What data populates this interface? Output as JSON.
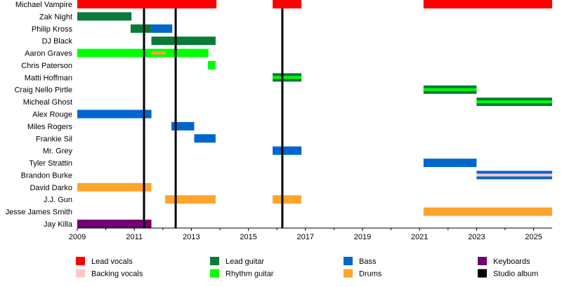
{
  "chart_data": {
    "type": "timeline",
    "xlim": [
      2009,
      2025.65
    ],
    "x_ticks": [
      "2009",
      "2011",
      "2013",
      "2015",
      "2017",
      "2019",
      "2021",
      "2023",
      "2025"
    ],
    "roles": {
      "lead_vocals": {
        "label": "Lead vocals",
        "color": "#ff0000"
      },
      "backing_vocals": {
        "label": "Backing vocals",
        "color": "#ffc8c8"
      },
      "lead_guitar": {
        "label": "Lead guitar",
        "color": "#0a7a3a"
      },
      "rhythm_guitar": {
        "label": "Rhythm guitar",
        "color": "#00ff00"
      },
      "bass": {
        "label": "Bass",
        "color": "#0066cc"
      },
      "drums": {
        "label": "Drums",
        "color": "#ffa52c"
      },
      "keyboards": {
        "label": "Keyboards",
        "color": "#730070"
      },
      "studio_album": {
        "label": "Studio album",
        "color": "#000000"
      }
    },
    "legend_order": [
      "lead_vocals",
      "backing_vocals",
      "lead_guitar",
      "rhythm_guitar",
      "bass",
      "drums",
      "keyboards",
      "studio_album"
    ],
    "studio_albums": [
      2011.34,
      2012.45,
      2016.19
    ],
    "members": [
      {
        "name": "Michael Vampire",
        "spans": [
          {
            "role": "lead_vocals",
            "start": 2009,
            "end": 2013.88
          },
          {
            "role": "lead_vocals",
            "start": 2015.85,
            "end": 2016.86
          },
          {
            "role": "lead_vocals",
            "start": 2021.14,
            "end": 2025.65
          }
        ]
      },
      {
        "name": "Zak Night",
        "spans": [
          {
            "role": "lead_guitar",
            "start": 2009,
            "end": 2010.9
          }
        ]
      },
      {
        "name": "Philip Kross",
        "spans": [
          {
            "role": "lead_guitar",
            "start": 2010.87,
            "end": 2011.6
          },
          {
            "role": "bass",
            "start": 2011.6,
            "end": 2012.33
          }
        ]
      },
      {
        "name": "DJ Black",
        "spans": [
          {
            "role": "lead_guitar",
            "start": 2011.6,
            "end": 2013.85
          }
        ]
      },
      {
        "name": "Aaron Graves",
        "spans": [
          {
            "role": "rhythm_guitar",
            "start": 2009,
            "end": 2013.6
          },
          {
            "role": "drums",
            "start": 2011.6,
            "end": 2012.1,
            "stripe": true
          }
        ]
      },
      {
        "name": "Chris Paterson",
        "spans": [
          {
            "role": "rhythm_guitar",
            "start": 2013.58,
            "end": 2013.85
          }
        ]
      },
      {
        "name": "Matti Hoffman",
        "spans": [
          {
            "role": "lead_guitar",
            "start": 2015.85,
            "end": 2016.86
          },
          {
            "role": "rhythm_guitar",
            "start": 2015.85,
            "end": 2016.86,
            "stripe": true
          }
        ]
      },
      {
        "name": "Craig Nello Pirtle",
        "spans": [
          {
            "role": "lead_guitar",
            "start": 2021.14,
            "end": 2023.0
          },
          {
            "role": "rhythm_guitar",
            "start": 2021.14,
            "end": 2023.0,
            "stripe": true
          }
        ]
      },
      {
        "name": "Micheal Ghost",
        "spans": [
          {
            "role": "lead_guitar",
            "start": 2023.0,
            "end": 2025.65
          },
          {
            "role": "rhythm_guitar",
            "start": 2023.0,
            "end": 2025.65,
            "stripe": true
          }
        ]
      },
      {
        "name": "Alex Rouge",
        "spans": [
          {
            "role": "bass",
            "start": 2009,
            "end": 2011.6
          }
        ]
      },
      {
        "name": "Miles Rogers",
        "spans": [
          {
            "role": "bass",
            "start": 2012.3,
            "end": 2013.1
          }
        ]
      },
      {
        "name": "Frankie Sil",
        "spans": [
          {
            "role": "bass",
            "start": 2013.1,
            "end": 2013.85
          }
        ]
      },
      {
        "name": "Mr. Grey",
        "spans": [
          {
            "role": "bass",
            "start": 2015.85,
            "end": 2016.86
          }
        ]
      },
      {
        "name": "Tyler Strattin",
        "spans": [
          {
            "role": "bass",
            "start": 2021.14,
            "end": 2023.0
          }
        ]
      },
      {
        "name": "Brandon Burke",
        "spans": [
          {
            "role": "bass",
            "start": 2023.0,
            "end": 2025.65
          },
          {
            "role": "backing_vocals",
            "start": 2023.0,
            "end": 2025.65,
            "stripe": true
          }
        ]
      },
      {
        "name": "David Darko",
        "spans": [
          {
            "role": "drums",
            "start": 2009,
            "end": 2011.6
          }
        ]
      },
      {
        "name": "J.J. Gun",
        "spans": [
          {
            "role": "drums",
            "start": 2012.08,
            "end": 2013.85
          },
          {
            "role": "drums",
            "start": 2015.85,
            "end": 2016.86
          }
        ]
      },
      {
        "name": "Jesse James Smith",
        "spans": [
          {
            "role": "drums",
            "start": 2021.14,
            "end": 2025.65
          }
        ]
      },
      {
        "name": "Jay Killa",
        "spans": [
          {
            "role": "keyboards",
            "start": 2009,
            "end": 2011.6
          }
        ]
      }
    ]
  }
}
